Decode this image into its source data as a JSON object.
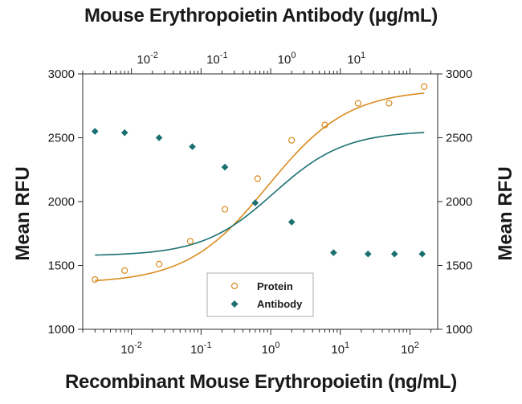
{
  "chart_data": {
    "type": "scatter",
    "title": "Mouse Erythropoietin Antibody (μg/mL)",
    "xlabel": "Recombinant Mouse Erythropoietin (ng/mL)",
    "ylabel": "Mean RFU",
    "ylabel_right": "Mean RFU",
    "x_scale": "log",
    "xlim": [
      0.002,
      250
    ],
    "ylim": [
      1000,
      3000
    ],
    "yticks": [
      1000,
      1500,
      2000,
      2500,
      3000
    ],
    "ytick_labels": [
      "1000",
      "1500",
      "2000",
      "2500",
      "3000"
    ],
    "bottom_xticks": [
      {
        "base": "10",
        "exp": "-2",
        "value": 0.01
      },
      {
        "base": "10",
        "exp": "-1",
        "value": 0.1
      },
      {
        "base": "10",
        "exp": "0",
        "value": 1
      },
      {
        "base": "10",
        "exp": "1",
        "value": 10
      },
      {
        "base": "10",
        "exp": "2",
        "value": 100
      }
    ],
    "top_xticks": [
      {
        "base": "10",
        "exp": "-2",
        "value": 0.01
      },
      {
        "base": "10",
        "exp": "-1",
        "value": 0.1
      },
      {
        "base": "10",
        "exp": "0",
        "value": 1
      },
      {
        "base": "10",
        "exp": "1",
        "value": 10
      }
    ],
    "grid": false,
    "legend_position": "bottom-center",
    "series": [
      {
        "name": "Protein",
        "marker": "open-circle",
        "color": "#d98b1e",
        "x": [
          0.003,
          0.008,
          0.025,
          0.07,
          0.22,
          0.65,
          2.0,
          6.0,
          18,
          50,
          160
        ],
        "y": [
          1390,
          1460,
          1510,
          1690,
          1940,
          2180,
          2480,
          2600,
          2770,
          2770,
          2900
        ]
      },
      {
        "name": "Antibody",
        "axis": "top",
        "marker": "filled-diamond",
        "color": "#1a7070",
        "x": [
          0.003,
          0.008,
          0.025,
          0.075,
          0.22,
          0.6,
          2.0,
          8.0,
          25,
          60,
          150
        ],
        "y": [
          2550,
          2540,
          2500,
          2430,
          2270,
          1990,
          1840,
          1600,
          1590,
          1590,
          1590
        ]
      }
    ]
  }
}
